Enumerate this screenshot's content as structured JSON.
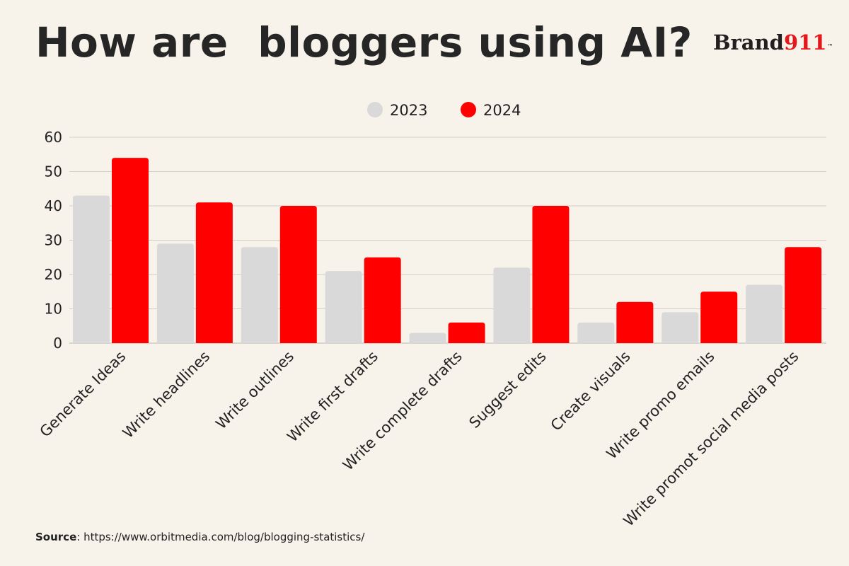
{
  "header": {
    "title": "How are  bloggers using AI?",
    "brand_name": "Brand",
    "brand_number": "911",
    "brand_tm": "™"
  },
  "footer": {
    "source_label": "Source",
    "source_separator": ": ",
    "source_url": "https://www.orbitmedia.com/blog/blogging-statistics/"
  },
  "colors": {
    "background": "#f7f2ea",
    "series_2023": "#d9d9d9",
    "series_2024": "#ff0000",
    "gridline": "#d3cfc8",
    "brand_red": "#e4181b"
  },
  "chart_data": {
    "type": "bar",
    "title": "How are  bloggers using AI?",
    "xlabel": "",
    "ylabel": "",
    "ylim": [
      0,
      60
    ],
    "yticks": [
      0,
      10,
      20,
      30,
      40,
      50,
      60
    ],
    "grid": true,
    "legend_position": "top-center",
    "categories": [
      "Generate Ideas",
      "Write headlines",
      "Write outlines",
      "Write first drafts",
      "Write complete drafts",
      "Suggest edits",
      "Create visuals",
      "Write promo emails",
      "Write promot social media posts"
    ],
    "series": [
      {
        "name": "2023",
        "color": "#d9d9d9",
        "values": [
          43,
          29,
          28,
          21,
          3,
          22,
          6,
          9,
          17
        ]
      },
      {
        "name": "2024",
        "color": "#ff0000",
        "values": [
          54,
          41,
          40,
          25,
          6,
          40,
          12,
          15,
          28
        ]
      }
    ]
  }
}
